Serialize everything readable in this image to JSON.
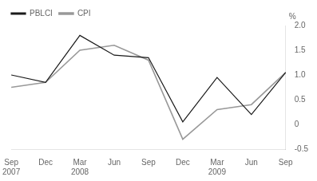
{
  "chart_data": {
    "type": "line",
    "categories": [
      "Sep\n2007",
      "Dec",
      "Mar\n2008",
      "Jun",
      "Sep",
      "Dec",
      "Mar\n2009",
      "Jun",
      "Sep"
    ],
    "series": [
      {
        "name": "PBLCI",
        "color": "#1a1a1a",
        "values": [
          1.0,
          0.85,
          1.8,
          1.4,
          1.35,
          0.05,
          0.95,
          0.2,
          1.05
        ]
      },
      {
        "name": "CPI",
        "color": "#999999",
        "values": [
          0.75,
          0.85,
          1.5,
          1.6,
          1.3,
          -0.3,
          0.3,
          0.4,
          1.05
        ]
      }
    ],
    "y_label": "%",
    "ylim": [
      -0.5,
      2.0
    ],
    "yticks": [
      -0.5,
      0,
      0.5,
      {
        "value": 1.0,
        "label": "1.0"
      },
      1.5,
      {
        "value": 2.0,
        "label": "2.0"
      }
    ],
    "grid": false,
    "legend": "upper left"
  }
}
